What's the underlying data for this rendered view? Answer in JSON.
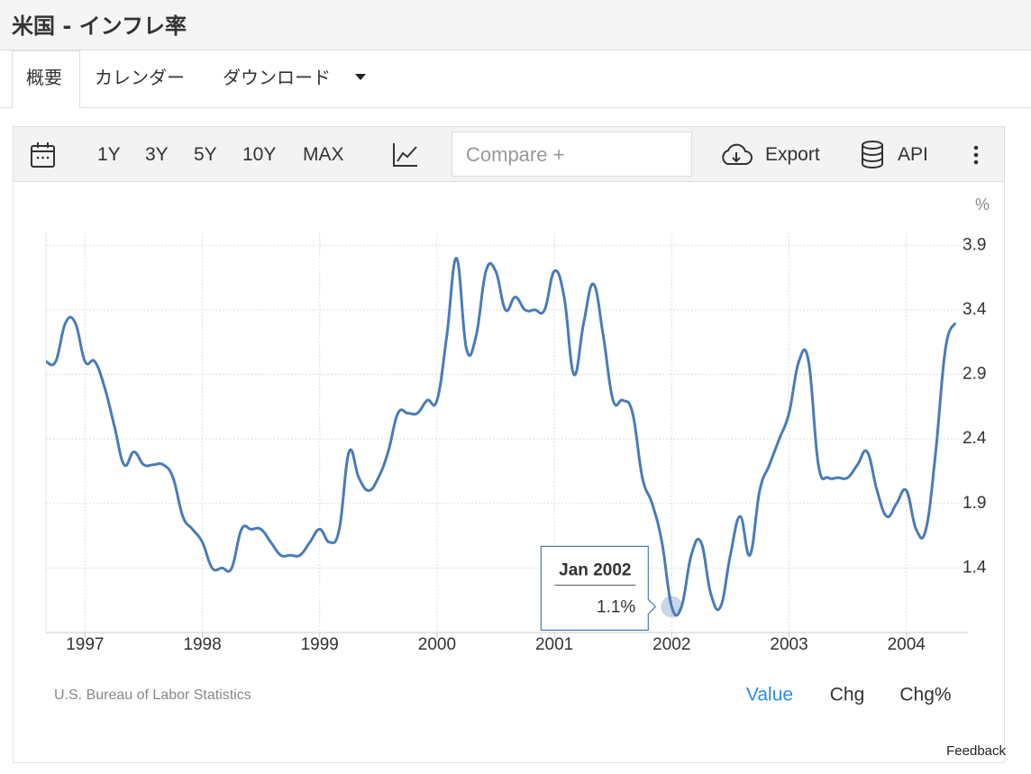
{
  "header": {
    "title": "米国 - インフレ率"
  },
  "tabs": [
    "概要",
    "カレンダー",
    "ダウンロード"
  ],
  "toolbar": {
    "ranges": [
      "1Y",
      "3Y",
      "5Y",
      "10Y",
      "MAX"
    ],
    "compare": "Compare +",
    "export": "Export",
    "api": "API"
  },
  "chart_data": {
    "type": "line",
    "unit": "%",
    "x": [
      "1996-09",
      "1996-10",
      "1996-11",
      "1996-12",
      "1997-01",
      "1997-02",
      "1997-03",
      "1997-04",
      "1997-05",
      "1997-06",
      "1997-07",
      "1997-08",
      "1997-09",
      "1997-10",
      "1997-11",
      "1997-12",
      "1998-01",
      "1998-02",
      "1998-03",
      "1998-04",
      "1998-05",
      "1998-06",
      "1998-07",
      "1998-08",
      "1998-09",
      "1998-10",
      "1998-11",
      "1998-12",
      "1999-01",
      "1999-02",
      "1999-03",
      "1999-04",
      "1999-05",
      "1999-06",
      "1999-07",
      "1999-08",
      "1999-09",
      "1999-10",
      "1999-11",
      "1999-12",
      "2000-01",
      "2000-02",
      "2000-03",
      "2000-04",
      "2000-05",
      "2000-06",
      "2000-07",
      "2000-08",
      "2000-09",
      "2000-10",
      "2000-11",
      "2000-12",
      "2001-01",
      "2001-02",
      "2001-03",
      "2001-04",
      "2001-05",
      "2001-06",
      "2001-07",
      "2001-08",
      "2001-09",
      "2001-10",
      "2001-11",
      "2001-12",
      "2002-01",
      "2002-02",
      "2002-03",
      "2002-04",
      "2002-05",
      "2002-06",
      "2002-07",
      "2002-08",
      "2002-09",
      "2002-10",
      "2002-11",
      "2002-12",
      "2003-01",
      "2003-02",
      "2003-03",
      "2003-04",
      "2003-05",
      "2003-06",
      "2003-07",
      "2003-08",
      "2003-09",
      "2003-10",
      "2003-11",
      "2003-12",
      "2004-01",
      "2004-02",
      "2004-03",
      "2004-04",
      "2004-05",
      "2004-06"
    ],
    "series": [
      {
        "color": "#4a7bb7",
        "values": [
          3.0,
          3.0,
          3.3,
          3.3,
          3.0,
          3.0,
          2.8,
          2.5,
          2.2,
          2.3,
          2.2,
          2.2,
          2.2,
          2.1,
          1.8,
          1.7,
          1.6,
          1.4,
          1.4,
          1.4,
          1.7,
          1.7,
          1.7,
          1.6,
          1.5,
          1.5,
          1.5,
          1.6,
          1.7,
          1.6,
          1.7,
          2.3,
          2.1,
          2.0,
          2.1,
          2.3,
          2.6,
          2.6,
          2.6,
          2.7,
          2.7,
          3.2,
          3.8,
          3.1,
          3.2,
          3.7,
          3.7,
          3.4,
          3.5,
          3.4,
          3.4,
          3.4,
          3.7,
          3.5,
          2.9,
          3.3,
          3.6,
          3.2,
          2.7,
          2.7,
          2.6,
          2.1,
          1.9,
          1.6,
          1.1,
          1.1,
          1.5,
          1.6,
          1.2,
          1.1,
          1.5,
          1.8,
          1.5,
          2.0,
          2.2,
          2.4,
          2.6,
          3.0,
          3.0,
          2.2,
          2.1,
          2.1,
          2.1,
          2.2,
          2.3,
          2.0,
          1.8,
          1.9,
          2.0,
          1.7,
          1.7,
          2.3,
          3.1,
          3.3
        ]
      }
    ],
    "xlim": [
      1996.667,
      2004.417
    ],
    "xticks": [
      1997,
      1998,
      1999,
      2000,
      2001,
      2002,
      2003,
      2004
    ],
    "ylim": [
      0.9,
      4.0
    ],
    "yticks": [
      1.4,
      1.9,
      2.4,
      2.9,
      3.4,
      3.9
    ],
    "grid": true,
    "tooltip": {
      "title": "Jan 2002",
      "value_label": "1.1%"
    }
  },
  "footer": {
    "source": "U.S. Bureau of Labor Statistics",
    "modes": [
      "Value",
      "Chg",
      "Chg%"
    ],
    "feedback": "Feedback"
  }
}
